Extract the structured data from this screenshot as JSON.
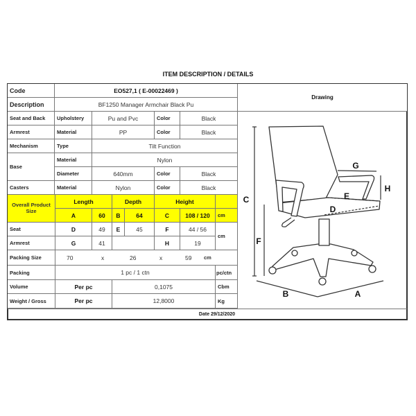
{
  "title": "ITEM DESCRIPTION / DETAILS",
  "code": {
    "label": "Code",
    "value": "EO527,1 ( E-00022469 )"
  },
  "description": {
    "label": "Description",
    "value": "BF1250 Manager Armchair Black Pu"
  },
  "drawing_label": "Drawing",
  "seat_and_back": {
    "label": "Seat and Back",
    "sub": "Upholstery",
    "value": "Pu and Pvc",
    "color_label": "Color",
    "color": "Black"
  },
  "armrest": {
    "label": "Armrest",
    "sub": "Material",
    "value": "PP",
    "color_label": "Color",
    "color": "Black"
  },
  "mechanism": {
    "label": "Mechanism",
    "sub": "Type",
    "value": "Tilt Function"
  },
  "base": {
    "label": "Base",
    "material_label": "Material",
    "material": "Nylon",
    "diameter_label": "Diameter",
    "diameter": "640mm",
    "color_label": "Color",
    "color": "Black"
  },
  "casters": {
    "label": "Casters",
    "sub": "Material",
    "value": "Nylon",
    "color_label": "Color",
    "color": "Black"
  },
  "overall": {
    "label": "Overall Product Size",
    "length": "Length",
    "depth": "Depth",
    "height": "Height",
    "a": "A",
    "a_val": "60",
    "b": "B",
    "b_val": "64",
    "c": "C",
    "c_val": "108 / 120",
    "unit": "cm"
  },
  "seat": {
    "label": "Seat",
    "d": "D",
    "d_val": "49",
    "e": "E",
    "e_val": "45",
    "f": "F",
    "f_val": "44 / 56"
  },
  "armrest_dims": {
    "label": "Armrest",
    "g": "G",
    "g_val": "41",
    "h": "H",
    "h_val": "19",
    "unit": "cm"
  },
  "packing_size": {
    "label": "Packing Size",
    "l": "70",
    "x1": "x",
    "w": "26",
    "x2": "x",
    "h": "59",
    "unit": "cm"
  },
  "packing": {
    "label": "Packing",
    "value": "1 pc / 1 ctn",
    "unit": "pc/ctn"
  },
  "volume": {
    "label": "Volume",
    "per": "Per pc",
    "value": "0,1075",
    "unit": "Cbm"
  },
  "weight": {
    "label": "Weight / Gross",
    "per": "Per pc",
    "value": "12,8000",
    "unit": "Kg"
  },
  "date": "Date 29/12/2020",
  "drawing_letters": {
    "a": "A",
    "b": "B",
    "c": "C",
    "d": "D",
    "e": "E",
    "f": "F",
    "g": "G",
    "h": "H"
  },
  "colors": {
    "highlight": "#ffff00",
    "border": "#333333"
  }
}
